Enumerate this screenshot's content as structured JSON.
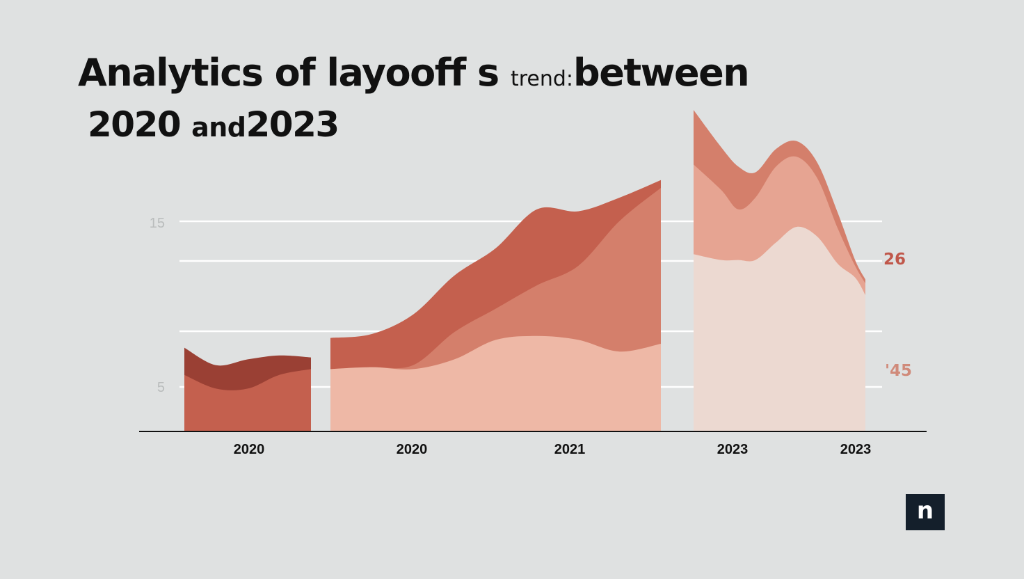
{
  "title": {
    "part1": "Analytics of layooff s",
    "part2": "trend:",
    "part3": "between",
    "part4": "2020",
    "part5": "and",
    "part6": "2023"
  },
  "logo": {
    "text": "n"
  },
  "colors": {
    "background": "#dfe1e1",
    "grid": "#ffffff",
    "axis": "#111111",
    "dark_red": "#9a4034",
    "red": "#c4604e",
    "mid_red": "#d47f6b",
    "salmon": "#e6a492",
    "light_salmon": "#eeb8a6",
    "pale": "#ecd9d1",
    "label_26": "#c0574a",
    "label_45": "#d08a7a"
  },
  "chart_data": {
    "type": "area",
    "title": "Analytics of layooff s trend: between 2020 and 2023",
    "y_tick_labels": [
      "15",
      "5"
    ],
    "x_tick_labels": [
      "2020",
      "2020",
      "2021",
      "2023",
      "2023"
    ],
    "right_labels": [
      "26",
      "'45"
    ],
    "grid": true,
    "segments": [
      {
        "x": [
          0,
          0.25,
          0.5,
          0.75,
          1
        ],
        "series": [
          {
            "name": "",
            "values": [
              2.9,
              2.2,
              2.2,
              2.9,
              3.2
            ]
          },
          {
            "name": "",
            "values": [
              1.4,
              1.2,
              1.5,
              1.0,
              0.6
            ]
          }
        ]
      },
      {
        "x": [
          0,
          0.125,
          0.25,
          0.375,
          0.5,
          0.625,
          0.75,
          0.875,
          1
        ],
        "series": [
          {
            "name": "",
            "values": [
              3.2,
              3.3,
              3.2,
              3.7,
              4.7,
              4.9,
              4.7,
              4.1,
              4.5
            ]
          },
          {
            "name": "",
            "values": [
              0,
              0,
              0.2,
              1.4,
              1.6,
              2.6,
              3.8,
              6.7,
              8.0
            ]
          },
          {
            "name": "",
            "values": [
              1.6,
              1.7,
              2.6,
              2.9,
              3.1,
              3.9,
              2.8,
              1.2,
              0.4
            ]
          }
        ]
      },
      {
        "x": [
          0,
          0.16,
          0.26,
          0.36,
          0.48,
          0.6,
          0.72,
          0.84,
          0.94,
          1
        ],
        "series": [
          {
            "name": "",
            "values": [
              9.1,
              8.8,
              8.8,
              8.8,
              9.7,
              10.5,
              10.0,
              8.6,
              7.9,
              7.0
            ]
          },
          {
            "name": "",
            "values": [
              4.6,
              3.6,
              2.6,
              3.2,
              3.9,
              3.6,
              3.0,
              1.8,
              0.6,
              0.6
            ]
          },
          {
            "name": "",
            "values": [
              2.8,
              2.2,
              2.2,
              1.3,
              0.9,
              0.8,
              0.8,
              0.8,
              0.3,
              0.2
            ]
          }
        ]
      }
    ]
  }
}
